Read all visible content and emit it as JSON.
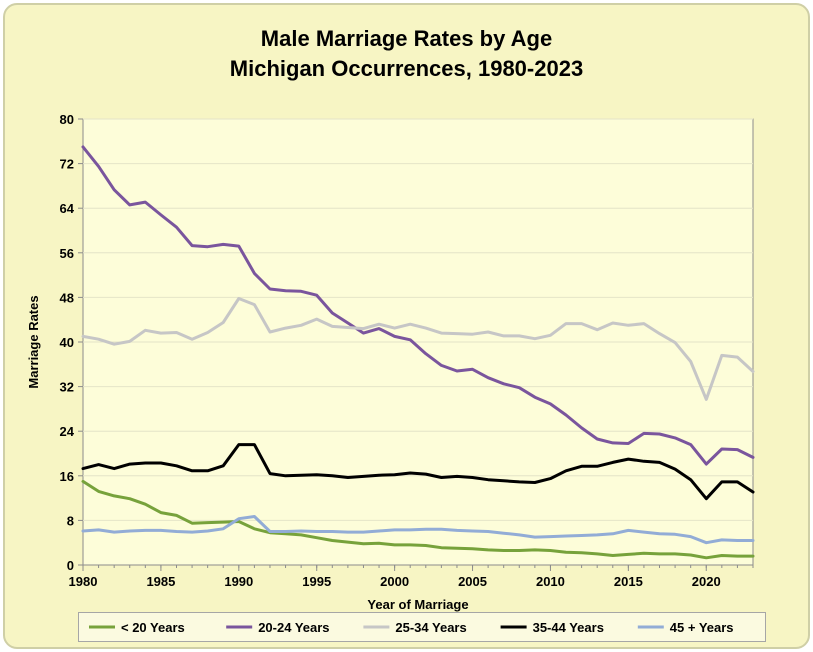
{
  "chart_data": {
    "type": "line",
    "title": "Male Marriage Rates by Age",
    "subtitle": "Michigan Occurrences, 1980-2023",
    "xlabel": "Year of Marriage",
    "ylabel": "Marriage Rates",
    "xlim": [
      1980,
      2023
    ],
    "ylim": [
      0,
      80
    ],
    "x_ticks": [
      1980,
      1985,
      1990,
      1995,
      2000,
      2005,
      2010,
      2015,
      2020
    ],
    "x_tick_labels": [
      "1980",
      "1985",
      "1990",
      "1995",
      "2000",
      "2005",
      "2010",
      "2015",
      "2020"
    ],
    "y_ticks": [
      0,
      8,
      16,
      24,
      32,
      40,
      48,
      56,
      64,
      72,
      80
    ],
    "y_tick_labels": [
      "0",
      "8",
      "16",
      "24",
      "32",
      "40",
      "48",
      "56",
      "64",
      "72",
      "80"
    ],
    "grid": true,
    "legend_position": "bottom",
    "x": [
      1980,
      1981,
      1982,
      1983,
      1984,
      1985,
      1986,
      1987,
      1988,
      1989,
      1990,
      1991,
      1992,
      1993,
      1994,
      1995,
      1996,
      1997,
      1998,
      1999,
      2000,
      2001,
      2002,
      2003,
      2004,
      2005,
      2006,
      2007,
      2008,
      2009,
      2010,
      2011,
      2012,
      2013,
      2014,
      2015,
      2016,
      2017,
      2018,
      2019,
      2020,
      2021,
      2022,
      2023
    ],
    "series": [
      {
        "name": "< 20 Years",
        "color": "#77a23b",
        "values": [
          15.0,
          13.2,
          12.4,
          11.9,
          10.9,
          9.4,
          8.9,
          7.5,
          7.6,
          7.7,
          7.8,
          6.5,
          5.8,
          5.6,
          5.4,
          4.9,
          4.4,
          4.1,
          3.8,
          3.9,
          3.6,
          3.6,
          3.5,
          3.1,
          3.0,
          2.9,
          2.7,
          2.6,
          2.6,
          2.7,
          2.6,
          2.3,
          2.2,
          2.0,
          1.7,
          1.9,
          2.1,
          2.0,
          2.0,
          1.8,
          1.3,
          1.7,
          1.6,
          1.6
        ]
      },
      {
        "name": "20-24 Years",
        "color": "#7a559d",
        "values": [
          75.0,
          71.5,
          67.3,
          64.6,
          65.1,
          62.8,
          60.6,
          57.3,
          57.1,
          57.5,
          57.2,
          52.3,
          49.5,
          49.2,
          49.1,
          48.4,
          45.2,
          43.4,
          41.6,
          42.4,
          41.0,
          40.4,
          37.9,
          35.8,
          34.8,
          35.1,
          33.6,
          32.5,
          31.8,
          30.1,
          28.9,
          26.9,
          24.6,
          22.6,
          21.9,
          21.8,
          23.6,
          23.5,
          22.8,
          21.6,
          18.1,
          20.8,
          20.7,
          19.3
        ]
      },
      {
        "name": "25-34 Years",
        "color": "#c6c6c6",
        "values": [
          41.0,
          40.5,
          39.6,
          40.1,
          42.1,
          41.6,
          41.7,
          40.5,
          41.7,
          43.5,
          47.8,
          46.7,
          41.8,
          42.5,
          43.0,
          44.1,
          42.8,
          42.6,
          42.4,
          43.2,
          42.5,
          43.2,
          42.5,
          41.6,
          41.5,
          41.4,
          41.8,
          41.1,
          41.1,
          40.6,
          41.2,
          43.3,
          43.3,
          42.2,
          43.4,
          43.0,
          43.3,
          41.5,
          39.9,
          36.5,
          29.7,
          37.6,
          37.3,
          34.7
        ]
      },
      {
        "name": "35-44 Years",
        "color": "#000000",
        "values": [
          17.3,
          18.0,
          17.3,
          18.1,
          18.3,
          18.3,
          17.8,
          16.9,
          16.9,
          17.8,
          21.6,
          21.6,
          16.4,
          16.0,
          16.1,
          16.2,
          16.0,
          15.7,
          15.9,
          16.1,
          16.2,
          16.5,
          16.3,
          15.7,
          15.9,
          15.7,
          15.3,
          15.1,
          14.9,
          14.8,
          15.5,
          16.9,
          17.7,
          17.7,
          18.4,
          19.0,
          18.6,
          18.4,
          17.2,
          15.3,
          11.9,
          14.9,
          14.9,
          13.1
        ]
      },
      {
        "name": "45 + Years",
        "color": "#92acd6",
        "values": [
          6.1,
          6.3,
          5.9,
          6.1,
          6.2,
          6.2,
          6.0,
          5.9,
          6.1,
          6.5,
          8.3,
          8.7,
          6.0,
          6.0,
          6.1,
          6.0,
          6.0,
          5.9,
          5.9,
          6.1,
          6.3,
          6.3,
          6.4,
          6.4,
          6.2,
          6.1,
          6.0,
          5.7,
          5.4,
          5.0,
          5.1,
          5.2,
          5.3,
          5.4,
          5.6,
          6.2,
          5.9,
          5.6,
          5.5,
          5.1,
          4.0,
          4.5,
          4.4,
          4.4
        ]
      }
    ]
  }
}
